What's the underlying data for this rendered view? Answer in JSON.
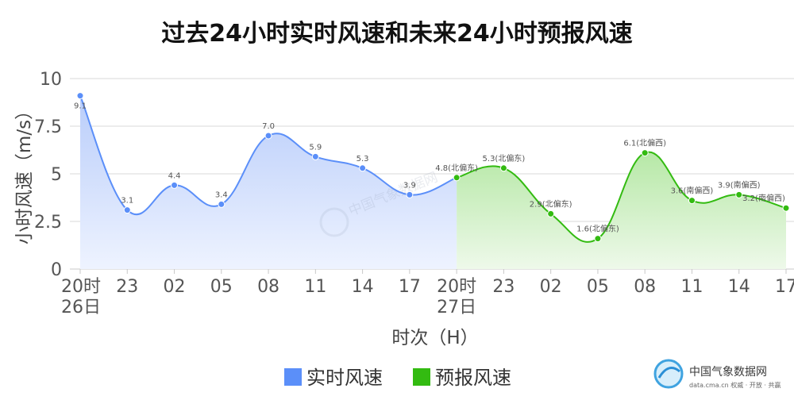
{
  "chart_data": {
    "type": "area",
    "title": "过去24小时实时风速和未来24小时预报风速",
    "xlabel": "时次（H）",
    "ylabel": "小时风速（m/s）",
    "ylim": [
      0,
      10
    ],
    "yticks": [
      "0",
      "2.5",
      "5",
      "7.5",
      "10"
    ],
    "grid": true,
    "legend_position": "bottom-center",
    "x_ticks": [
      {
        "main": "20时",
        "sub": "26日"
      },
      {
        "main": "23",
        "sub": ""
      },
      {
        "main": "02",
        "sub": ""
      },
      {
        "main": "05",
        "sub": ""
      },
      {
        "main": "08",
        "sub": ""
      },
      {
        "main": "11",
        "sub": ""
      },
      {
        "main": "14",
        "sub": ""
      },
      {
        "main": "17",
        "sub": ""
      },
      {
        "main": "20时",
        "sub": "27日"
      },
      {
        "main": "23",
        "sub": ""
      },
      {
        "main": "02",
        "sub": ""
      },
      {
        "main": "05",
        "sub": ""
      },
      {
        "main": "08",
        "sub": ""
      },
      {
        "main": "11",
        "sub": ""
      },
      {
        "main": "14",
        "sub": ""
      },
      {
        "main": "17",
        "sub": ""
      }
    ],
    "series": [
      {
        "name": "实时风速",
        "color": "#5b8ff9",
        "fill_top": "#b9cdfa",
        "fill_bottom": "#eef3ff",
        "points": [
          {
            "x": 0,
            "y": 9.1,
            "label": "9.1"
          },
          {
            "x": 1,
            "y": 3.1,
            "label": "3.1"
          },
          {
            "x": 2,
            "y": 4.4,
            "label": "4.4"
          },
          {
            "x": 3,
            "y": 3.4,
            "label": "3.4"
          },
          {
            "x": 4,
            "y": 7.0,
            "label": "7.0"
          },
          {
            "x": 5,
            "y": 5.9,
            "label": "5.9"
          },
          {
            "x": 6,
            "y": 5.3,
            "label": "5.3"
          },
          {
            "x": 7,
            "y": 3.9,
            "label": "3.9"
          }
        ]
      },
      {
        "name": "预报风速",
        "color": "#33bb11",
        "fill_top": "#b6e8a6",
        "fill_bottom": "#eef9ea",
        "points": [
          {
            "x": 8,
            "y": 4.8,
            "label": "4.8(北偏东)"
          },
          {
            "x": 9,
            "y": 5.3,
            "label": "5.3(北偏东)"
          },
          {
            "x": 10,
            "y": 2.9,
            "label": "2.9(北偏东)"
          },
          {
            "x": 11,
            "y": 1.6,
            "label": "1.6(北偏东)"
          },
          {
            "x": 12,
            "y": 6.1,
            "label": "6.1(北偏西)"
          },
          {
            "x": 13,
            "y": 3.6,
            "label": "3.6(南偏西)"
          },
          {
            "x": 14,
            "y": 3.9,
            "label": "3.9(南偏西)"
          },
          {
            "x": 15,
            "y": 3.2,
            "label": "3.2(南偏西)"
          }
        ]
      }
    ]
  },
  "watermark_text": "中国气象数据网",
  "brand": {
    "name": "中国气象数据网",
    "subtitle": "data.cma.cn 权威 · 开放 · 共赢"
  }
}
